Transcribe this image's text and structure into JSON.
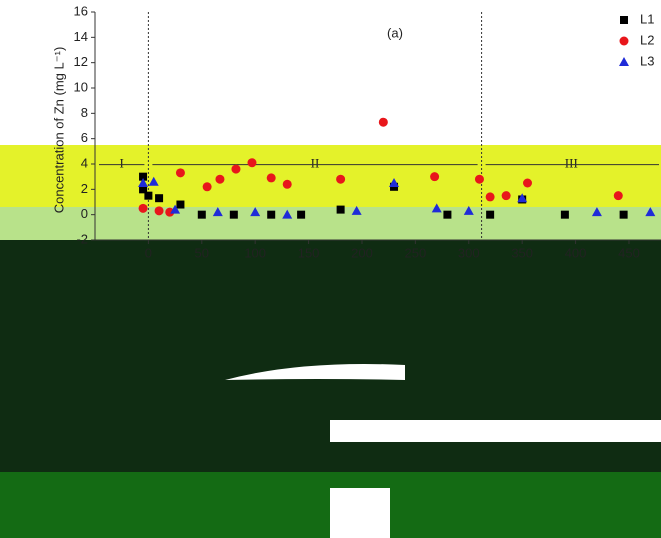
{
  "chart_data": {
    "type": "scatter",
    "ylabel": "Concentration of Zn (mg L⁻¹)",
    "annotations": [
      "(a)",
      "I",
      "II",
      "III"
    ],
    "region_boundaries": [
      0,
      312
    ],
    "xlim": [
      -50,
      480
    ],
    "xticks": [
      0,
      50,
      100,
      150,
      200,
      250,
      300,
      350,
      400,
      450
    ],
    "ylim": [
      -2,
      16
    ],
    "yticks": [
      -2,
      0,
      2,
      4,
      6,
      8,
      10,
      12,
      14,
      16
    ],
    "legend": "upper right",
    "series": [
      {
        "name": "L1",
        "color": "#000000",
        "marker": "square",
        "x": [
          -5,
          -5,
          0,
          10,
          30,
          50,
          80,
          115,
          143,
          180,
          230,
          280,
          320,
          350,
          390,
          445
        ],
        "values": [
          3,
          2,
          1.5,
          1.3,
          0.8,
          0,
          0,
          0,
          0,
          0.4,
          2.2,
          0,
          0,
          1.2,
          0,
          0
        ]
      },
      {
        "name": "L2",
        "color": "#e8161b",
        "marker": "circle",
        "x": [
          -5,
          10,
          20,
          30,
          55,
          67,
          82,
          97,
          115,
          130,
          180,
          220,
          268,
          310,
          320,
          335,
          355,
          440
        ],
        "values": [
          0.5,
          0.3,
          0.2,
          3.3,
          2.2,
          2.8,
          3.6,
          4.1,
          2.9,
          2.4,
          2.8,
          7.3,
          3,
          2.8,
          1.4,
          1.5,
          2.5,
          1.5
        ]
      },
      {
        "name": "L3",
        "color": "#1f2bd8",
        "marker": "triangle",
        "x": [
          -5,
          5,
          25,
          65,
          100,
          130,
          195,
          230,
          270,
          300,
          350,
          420,
          470
        ],
        "values": [
          2.5,
          2.6,
          0.4,
          0.2,
          0.2,
          0,
          0.3,
          2.5,
          0.5,
          0.3,
          1.3,
          0.2,
          0.2
        ]
      }
    ]
  }
}
